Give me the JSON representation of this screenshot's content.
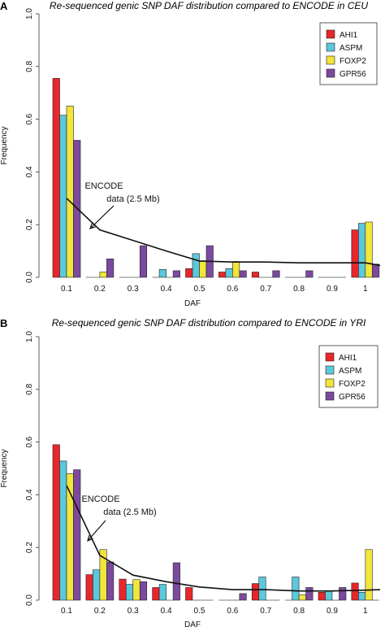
{
  "chart_data": [
    {
      "panel": "A",
      "type": "bar",
      "title": "Re-sequenced genic SNP DAF distribution compared to ENCODE in CEU",
      "xlabel": "DAF",
      "ylabel": "Frequency",
      "ylim": [
        0,
        1.0
      ],
      "yticks": [
        "0.0",
        "0.2",
        "0.4",
        "0.6",
        "0.8",
        "1.0"
      ],
      "categories": [
        "0.1",
        "0.2",
        "0.3",
        "0.4",
        "0.5",
        "0.6",
        "0.7",
        "0.8",
        "0.9",
        "1"
      ],
      "series": [
        {
          "name": "AHI1",
          "color": "#e8262b",
          "values": [
            0.755,
            0.0,
            0.0,
            0.0,
            0.033,
            0.02,
            0.02,
            0.0,
            0.0,
            0.18
          ]
        },
        {
          "name": "ASPM",
          "color": "#5bc8dc",
          "values": [
            0.615,
            0.0,
            0.0,
            0.03,
            0.09,
            0.033,
            0.0,
            0.0,
            0.0,
            0.205
          ]
        },
        {
          "name": "FOXP2",
          "color": "#f2e53b",
          "values": [
            0.65,
            0.02,
            0.0,
            0.0,
            0.06,
            0.06,
            0.0,
            0.0,
            0.0,
            0.21
          ]
        },
        {
          "name": "GPR56",
          "color": "#7b4a9e",
          "values": [
            0.52,
            0.07,
            0.12,
            0.025,
            0.12,
            0.025,
            0.025,
            0.025,
            0.0,
            0.05
          ]
        }
      ],
      "line": {
        "values": [
          0.3,
          0.18,
          0.14,
          0.1,
          0.062,
          0.058,
          0.058,
          0.055,
          0.055,
          0.055,
          0.045
        ],
        "x": [
          1,
          2,
          3,
          4,
          5,
          6,
          7,
          8,
          9,
          10,
          10.5
        ]
      },
      "annotation": {
        "line1": "ENCODE",
        "line2": "data (2.5 Mb)"
      },
      "legend_position": "top-right"
    },
    {
      "panel": "B",
      "type": "bar",
      "title": "Re-sequenced genic SNP DAF distribution compared to ENCODE in YRI",
      "xlabel": "DAF",
      "ylabel": "Frequency",
      "ylim": [
        0,
        1.0
      ],
      "yticks": [
        "0.0",
        "0.2",
        "0.4",
        "0.6",
        "0.8",
        "1.0"
      ],
      "categories": [
        "0.1",
        "0.2",
        "0.3",
        "0.4",
        "0.5",
        "0.6",
        "0.7",
        "0.8",
        "0.9",
        "1"
      ],
      "series": [
        {
          "name": "AHI1",
          "color": "#e8262b",
          "values": [
            0.59,
            0.097,
            0.08,
            0.048,
            0.048,
            0.0,
            0.063,
            0.0,
            0.03,
            0.065
          ]
        },
        {
          "name": "ASPM",
          "color": "#5bc8dc",
          "values": [
            0.528,
            0.115,
            0.06,
            0.06,
            0.0,
            0.0,
            0.088,
            0.088,
            0.035,
            0.03
          ]
        },
        {
          "name": "FOXP2",
          "color": "#f2e53b",
          "values": [
            0.48,
            0.192,
            0.078,
            0.0,
            0.0,
            0.0,
            0.0,
            0.02,
            0.0,
            0.192
          ]
        },
        {
          "name": "GPR56",
          "color": "#7b4a9e",
          "values": [
            0.495,
            0.145,
            0.07,
            0.142,
            0.0,
            0.025,
            0.0,
            0.048,
            0.048,
            0.0
          ]
        }
      ],
      "line": {
        "values": [
          0.435,
          0.17,
          0.095,
          0.07,
          0.05,
          0.04,
          0.04,
          0.035,
          0.035,
          0.038,
          0.04
        ],
        "x": [
          1,
          2,
          3,
          4,
          5,
          6,
          7,
          8,
          9,
          10,
          10.5
        ]
      },
      "annotation": {
        "line1": "ENCODE",
        "line2": "data (2.5 Mb)"
      },
      "legend_position": "top-right"
    }
  ]
}
